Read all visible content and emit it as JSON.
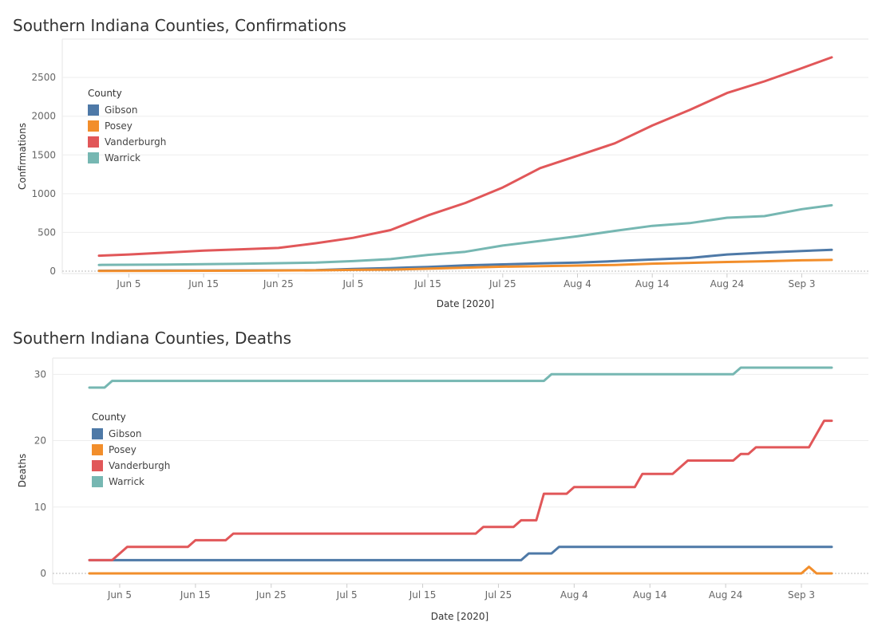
{
  "chart_data": [
    {
      "type": "line",
      "title": "Southern Indiana Counties, Confirmations",
      "xlabel": "Date [2020]",
      "ylabel": "Confirmations",
      "x_ticks": [
        "Jun 5",
        "Jun 15",
        "Jun 25",
        "Jul 5",
        "Jul 15",
        "Jul 25",
        "Aug 4",
        "Aug 14",
        "Aug 24",
        "Sep 3"
      ],
      "x_range": [
        "2020-06-01",
        "2020-09-07"
      ],
      "y_ticks": [
        0,
        500,
        1000,
        1500,
        2000,
        2500
      ],
      "ylim": [
        0,
        2800
      ],
      "legend": {
        "title": "County",
        "placement": "top-left"
      },
      "series": [
        {
          "name": "Gibson",
          "color": "#4e79a7",
          "points": [
            [
              "2020-06-01",
              5
            ],
            [
              "2020-06-10",
              7
            ],
            [
              "2020-06-20",
              9
            ],
            [
              "2020-06-30",
              12
            ],
            [
              "2020-07-05",
              28
            ],
            [
              "2020-07-10",
              40
            ],
            [
              "2020-07-15",
              55
            ],
            [
              "2020-07-20",
              75
            ],
            [
              "2020-07-25",
              88
            ],
            [
              "2020-07-30",
              100
            ],
            [
              "2020-08-04",
              110
            ],
            [
              "2020-08-09",
              130
            ],
            [
              "2020-08-14",
              150
            ],
            [
              "2020-08-19",
              170
            ],
            [
              "2020-08-24",
              215
            ],
            [
              "2020-08-29",
              240
            ],
            [
              "2020-09-03",
              260
            ],
            [
              "2020-09-07",
              275
            ]
          ]
        },
        {
          "name": "Posey",
          "color": "#f28e2b",
          "points": [
            [
              "2020-06-01",
              3
            ],
            [
              "2020-06-10",
              4
            ],
            [
              "2020-06-20",
              6
            ],
            [
              "2020-06-30",
              10
            ],
            [
              "2020-07-05",
              16
            ],
            [
              "2020-07-10",
              20
            ],
            [
              "2020-07-15",
              32
            ],
            [
              "2020-07-20",
              45
            ],
            [
              "2020-07-25",
              58
            ],
            [
              "2020-07-30",
              65
            ],
            [
              "2020-08-04",
              72
            ],
            [
              "2020-08-09",
              80
            ],
            [
              "2020-08-14",
              97
            ],
            [
              "2020-08-19",
              107
            ],
            [
              "2020-08-24",
              118
            ],
            [
              "2020-08-29",
              128
            ],
            [
              "2020-09-03",
              140
            ],
            [
              "2020-09-07",
              145
            ]
          ]
        },
        {
          "name": "Vanderburgh",
          "color": "#e15759",
          "points": [
            [
              "2020-06-01",
              200
            ],
            [
              "2020-06-05",
              215
            ],
            [
              "2020-06-10",
              240
            ],
            [
              "2020-06-15",
              265
            ],
            [
              "2020-06-20",
              282
            ],
            [
              "2020-06-25",
              300
            ],
            [
              "2020-06-30",
              360
            ],
            [
              "2020-07-05",
              430
            ],
            [
              "2020-07-10",
              530
            ],
            [
              "2020-07-15",
              720
            ],
            [
              "2020-07-20",
              880
            ],
            [
              "2020-07-25",
              1080
            ],
            [
              "2020-07-30",
              1330
            ],
            [
              "2020-08-04",
              1490
            ],
            [
              "2020-08-09",
              1650
            ],
            [
              "2020-08-14",
              1880
            ],
            [
              "2020-08-19",
              2080
            ],
            [
              "2020-08-24",
              2300
            ],
            [
              "2020-08-29",
              2450
            ],
            [
              "2020-09-03",
              2620
            ],
            [
              "2020-09-07",
              2760
            ]
          ]
        },
        {
          "name": "Warrick",
          "color": "#76b7b2",
          "points": [
            [
              "2020-06-01",
              80
            ],
            [
              "2020-06-10",
              85
            ],
            [
              "2020-06-20",
              95
            ],
            [
              "2020-06-30",
              110
            ],
            [
              "2020-07-05",
              130
            ],
            [
              "2020-07-10",
              155
            ],
            [
              "2020-07-15",
              210
            ],
            [
              "2020-07-20",
              250
            ],
            [
              "2020-07-25",
              330
            ],
            [
              "2020-07-30",
              390
            ],
            [
              "2020-08-04",
              450
            ],
            [
              "2020-08-09",
              520
            ],
            [
              "2020-08-14",
              585
            ],
            [
              "2020-08-19",
              620
            ],
            [
              "2020-08-24",
              690
            ],
            [
              "2020-08-29",
              710
            ],
            [
              "2020-09-03",
              800
            ],
            [
              "2020-09-07",
              850
            ]
          ]
        }
      ]
    },
    {
      "type": "line",
      "title": "Southern Indiana Counties, Deaths",
      "xlabel": "Date [2020]",
      "ylabel": "Deaths",
      "x_ticks": [
        "Jun 5",
        "Jun 15",
        "Jun 25",
        "Jul 5",
        "Jul 15",
        "Jul 25",
        "Aug 4",
        "Aug 14",
        "Aug 24",
        "Sep 3"
      ],
      "x_range": [
        "2020-06-01",
        "2020-09-07"
      ],
      "y_ticks": [
        0,
        10,
        20,
        30
      ],
      "ylim": [
        0,
        31
      ],
      "legend": {
        "title": "County",
        "placement": "left"
      },
      "series": [
        {
          "name": "Gibson",
          "color": "#4e79a7",
          "points": [
            [
              "2020-06-01",
              2
            ],
            [
              "2020-07-28",
              2
            ],
            [
              "2020-07-29",
              3
            ],
            [
              "2020-08-01",
              3
            ],
            [
              "2020-08-02",
              4
            ],
            [
              "2020-09-07",
              4
            ]
          ]
        },
        {
          "name": "Posey",
          "color": "#f28e2b",
          "points": [
            [
              "2020-06-01",
              0
            ],
            [
              "2020-09-03",
              0
            ],
            [
              "2020-09-04",
              1
            ],
            [
              "2020-09-05",
              0
            ],
            [
              "2020-09-07",
              0
            ]
          ]
        },
        {
          "name": "Vanderburgh",
          "color": "#e15759",
          "points": [
            [
              "2020-06-01",
              2
            ],
            [
              "2020-06-04",
              2
            ],
            [
              "2020-06-06",
              4
            ],
            [
              "2020-06-14",
              4
            ],
            [
              "2020-06-15",
              5
            ],
            [
              "2020-06-19",
              5
            ],
            [
              "2020-06-20",
              6
            ],
            [
              "2020-07-22",
              6
            ],
            [
              "2020-07-23",
              7
            ],
            [
              "2020-07-27",
              7
            ],
            [
              "2020-07-28",
              8
            ],
            [
              "2020-07-30",
              8
            ],
            [
              "2020-07-31",
              12
            ],
            [
              "2020-08-03",
              12
            ],
            [
              "2020-08-04",
              13
            ],
            [
              "2020-08-12",
              13
            ],
            [
              "2020-08-13",
              15
            ],
            [
              "2020-08-17",
              15
            ],
            [
              "2020-08-19",
              17
            ],
            [
              "2020-08-25",
              17
            ],
            [
              "2020-08-26",
              18
            ],
            [
              "2020-08-27",
              18
            ],
            [
              "2020-08-28",
              19
            ],
            [
              "2020-09-04",
              19
            ],
            [
              "2020-09-06",
              23
            ],
            [
              "2020-09-07",
              23
            ]
          ]
        },
        {
          "name": "Warrick",
          "color": "#76b7b2",
          "points": [
            [
              "2020-06-01",
              28
            ],
            [
              "2020-06-03",
              28
            ],
            [
              "2020-06-04",
              29
            ],
            [
              "2020-07-31",
              29
            ],
            [
              "2020-08-01",
              30
            ],
            [
              "2020-08-25",
              30
            ],
            [
              "2020-08-26",
              31
            ],
            [
              "2020-09-07",
              31
            ]
          ]
        }
      ]
    }
  ]
}
